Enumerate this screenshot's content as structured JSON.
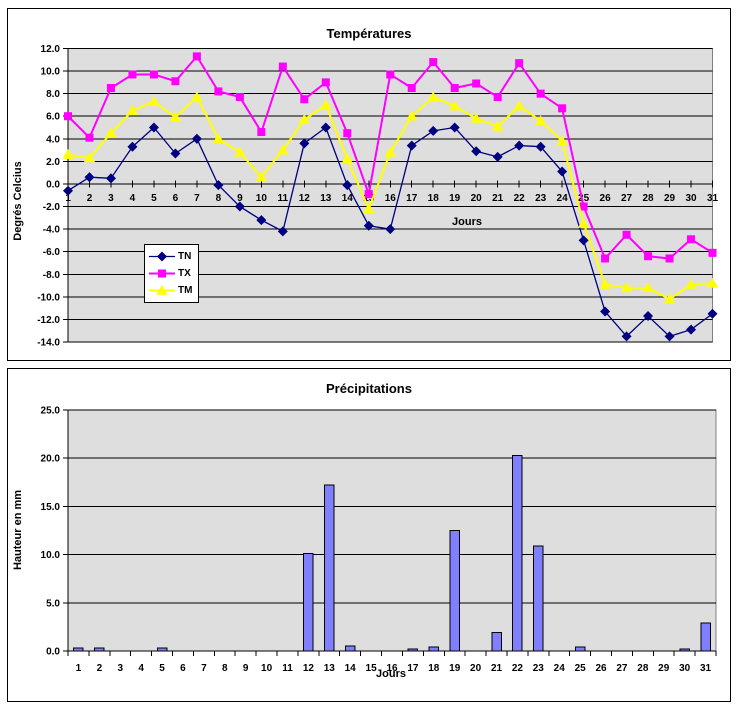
{
  "colors": {
    "page_background": "#FFFFFF",
    "chart_border": "#000000",
    "plot_background": "#DEDEDE",
    "plot_border": "#808080",
    "gridline": "#000000",
    "axis": "#000000",
    "text": "#000000",
    "legend_background": "#FFFFFF",
    "legend_border": "#000000",
    "bar_fill": "#8080FF",
    "bar_border": "#000000"
  },
  "chart_data": [
    {
      "type": "line",
      "title": "Températures",
      "xlabel": "Jours",
      "ylabel": "Degrés Celcius",
      "categories": [
        "1",
        "2",
        "3",
        "4",
        "5",
        "6",
        "7",
        "8",
        "9",
        "10",
        "11",
        "12",
        "13",
        "14",
        "15",
        "16",
        "17",
        "18",
        "19",
        "20",
        "21",
        "22",
        "23",
        "24",
        "25",
        "26",
        "27",
        "28",
        "29",
        "30",
        "31"
      ],
      "ylim": [
        -14,
        12
      ],
      "ytick_step": 2,
      "yticks": [
        12,
        10,
        8,
        6,
        4,
        2,
        0,
        -2,
        -4,
        -6,
        -8,
        -10,
        -12,
        -14
      ],
      "ytick_labels": [
        "12.0",
        "10.0",
        "8.0",
        "6.0",
        "4.0",
        "2.0",
        "0.0",
        "-2.0",
        "-4.0",
        "-6.0",
        "-8.0",
        "-10.0",
        "-12.0",
        "-14.0"
      ],
      "grid": true,
      "legend_position": "inside-left",
      "series": [
        {
          "name": "TN",
          "color": "#000080",
          "marker": "diamond",
          "line_width": 1.3,
          "values": [
            -0.6,
            0.6,
            0.5,
            3.3,
            5.0,
            2.7,
            4.0,
            -0.1,
            -2.0,
            -3.2,
            -4.2,
            3.6,
            5.0,
            -0.1,
            -3.7,
            -4.0,
            3.4,
            4.7,
            5.0,
            2.9,
            2.4,
            3.4,
            3.3,
            1.1,
            -5.0,
            -11.3,
            -13.5,
            -11.7,
            -13.5,
            -12.9,
            -11.5
          ]
        },
        {
          "name": "TX",
          "color": "#FF00FF",
          "marker": "square",
          "line_width": 2,
          "values": [
            6.0,
            4.1,
            8.5,
            9.7,
            9.7,
            9.1,
            11.3,
            8.2,
            7.7,
            4.6,
            10.4,
            7.5,
            9.0,
            4.5,
            -0.9,
            9.7,
            8.5,
            10.8,
            8.5,
            8.9,
            7.7,
            10.7,
            8.0,
            6.7,
            -2.0,
            -6.6,
            -4.5,
            -6.4,
            -6.6,
            -4.9,
            -6.1
          ]
        },
        {
          "name": "TM",
          "color": "#FFFF00",
          "marker": "triangle",
          "line_width": 2,
          "values": [
            2.6,
            2.3,
            4.5,
            6.5,
            7.3,
            5.9,
            7.7,
            4.0,
            2.8,
            0.6,
            3.0,
            5.7,
            7.0,
            2.2,
            -2.2,
            2.8,
            6.0,
            7.7,
            6.9,
            5.8,
            5.1,
            6.9,
            5.6,
            3.8,
            -3.5,
            -8.9,
            -9.2,
            -9.2,
            -10.2,
            -8.9,
            -8.8
          ]
        }
      ]
    },
    {
      "type": "bar",
      "title": "Précipitations",
      "xlabel": "Jours",
      "ylabel": "Hauteur en mm",
      "categories": [
        "1",
        "2",
        "3",
        "4",
        "5",
        "6",
        "7",
        "8",
        "9",
        "10",
        "11",
        "12",
        "13",
        "14",
        "15",
        "16",
        "17",
        "18",
        "19",
        "20",
        "21",
        "22",
        "23",
        "24",
        "25",
        "26",
        "27",
        "28",
        "29",
        "30",
        "31"
      ],
      "ylim": [
        0,
        25
      ],
      "ytick_step": 5,
      "yticks": [
        25,
        20,
        15,
        10,
        5,
        0
      ],
      "ytick_labels": [
        "25.0",
        "20.0",
        "15.0",
        "10.0",
        "5.0",
        "0.0"
      ],
      "grid": true,
      "values": [
        0.3,
        0.3,
        0,
        0,
        0.3,
        0,
        0,
        0,
        0,
        0,
        0,
        10.1,
        17.2,
        0.5,
        0,
        0,
        0.2,
        0.4,
        12.5,
        0,
        1.9,
        20.3,
        10.9,
        0,
        0.4,
        0,
        0,
        0,
        0,
        0.2,
        2.9
      ]
    }
  ]
}
